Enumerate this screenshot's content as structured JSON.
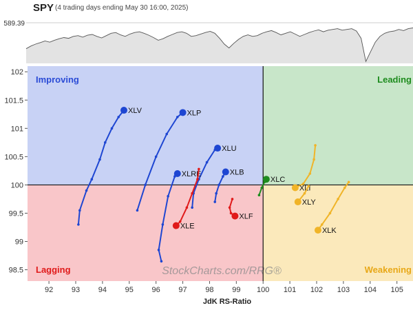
{
  "header": {
    "symbol": "SPY",
    "subtitle": "(4 trading days ending May 30 16:00, 2025)",
    "last_price": "589.39"
  },
  "spy_sparkline": [
    0.62,
    0.55,
    0.5,
    0.46,
    0.42,
    0.45,
    0.4,
    0.36,
    0.33,
    0.35,
    0.3,
    0.28,
    0.32,
    0.27,
    0.25,
    0.3,
    0.34,
    0.28,
    0.22,
    0.2,
    0.26,
    0.3,
    0.24,
    0.2,
    0.18,
    0.22,
    0.27,
    0.33,
    0.4,
    0.36,
    0.3,
    0.25,
    0.2,
    0.18,
    0.22,
    0.3,
    0.28,
    0.24,
    0.2,
    0.17,
    0.22,
    0.35,
    0.5,
    0.6,
    0.48,
    0.38,
    0.3,
    0.26,
    0.3,
    0.28,
    0.22,
    0.18,
    0.15,
    0.2,
    0.26,
    0.22,
    0.18,
    0.24,
    0.3,
    0.25,
    0.2,
    0.16,
    0.13,
    0.18,
    0.14,
    0.12,
    0.1,
    0.14,
    0.12,
    0.1,
    0.16,
    0.35,
    0.95,
    0.7,
    0.45,
    0.3,
    0.22,
    0.18,
    0.16,
    0.12,
    0.15,
    0.1,
    0.08
  ],
  "chart_data": {
    "type": "scatter",
    "title": "",
    "xlabel": "JdK RS-Ratio",
    "ylabel": "",
    "xlim": [
      91.2,
      105.6
    ],
    "ylim": [
      98.3,
      102.1
    ],
    "x_ticks": [
      "92",
      "93",
      "94",
      "95",
      "96",
      "97",
      "98",
      "99",
      "100",
      "101",
      "102",
      "103",
      "104",
      "105"
    ],
    "y_ticks": [
      "98.5",
      "99",
      "99.5",
      "100",
      "100.5",
      "101",
      "101.5",
      "102"
    ],
    "quadrants": [
      "Improving",
      "Leading",
      "Lagging",
      "Weakening"
    ],
    "watermark": "StockCharts.com/RRG®",
    "center": [
      100,
      100
    ],
    "grid": false,
    "series": [
      {
        "name": "XLV",
        "color": "#1e46d2",
        "points": [
          [
            93.1,
            99.3
          ],
          [
            93.15,
            99.55
          ],
          [
            93.4,
            99.9
          ],
          [
            93.6,
            100.1
          ],
          [
            93.9,
            100.45
          ],
          [
            94.1,
            100.75
          ],
          [
            94.35,
            101.0
          ],
          [
            94.6,
            101.2
          ],
          [
            94.8,
            101.32
          ]
        ]
      },
      {
        "name": "XLP",
        "color": "#1e46d2",
        "points": [
          [
            95.3,
            99.55
          ],
          [
            95.6,
            100.0
          ],
          [
            96.0,
            100.5
          ],
          [
            96.4,
            100.9
          ],
          [
            96.8,
            101.2
          ],
          [
            97.0,
            101.28
          ]
        ]
      },
      {
        "name": "XLU",
        "color": "#1e46d2",
        "points": [
          [
            97.35,
            99.6
          ],
          [
            97.4,
            99.85
          ],
          [
            97.6,
            100.1
          ],
          [
            97.9,
            100.4
          ],
          [
            98.2,
            100.62
          ],
          [
            98.3,
            100.65
          ]
        ]
      },
      {
        "name": "XLRE",
        "color": "#1e46d2",
        "points": [
          [
            96.2,
            98.65
          ],
          [
            96.1,
            98.85
          ],
          [
            96.25,
            99.3
          ],
          [
            96.45,
            99.8
          ],
          [
            96.7,
            100.15
          ],
          [
            96.8,
            100.2
          ]
        ]
      },
      {
        "name": "XLB",
        "color": "#1e46d2",
        "points": [
          [
            98.2,
            99.7
          ],
          [
            98.25,
            99.85
          ],
          [
            98.35,
            100.0
          ],
          [
            98.5,
            100.15
          ],
          [
            98.6,
            100.23
          ]
        ]
      },
      {
        "name": "XLE",
        "color": "#e01a1a",
        "points": [
          [
            97.6,
            100.28
          ],
          [
            97.55,
            100.1
          ],
          [
            97.35,
            99.85
          ],
          [
            97.15,
            99.6
          ],
          [
            96.9,
            99.35
          ],
          [
            96.75,
            99.28
          ]
        ]
      },
      {
        "name": "XLF",
        "color": "#e01a1a",
        "points": [
          [
            98.85,
            99.75
          ],
          [
            98.75,
            99.6
          ],
          [
            98.8,
            99.5
          ],
          [
            98.95,
            99.45
          ]
        ]
      },
      {
        "name": "XLC",
        "color": "#1e8c1e",
        "points": [
          [
            99.85,
            99.82
          ],
          [
            99.95,
            99.95
          ],
          [
            100.05,
            100.05
          ],
          [
            100.12,
            100.1
          ]
        ]
      },
      {
        "name": "XLI",
        "color": "#f0b428",
        "points": [
          [
            101.95,
            100.7
          ],
          [
            101.9,
            100.45
          ],
          [
            101.75,
            100.2
          ],
          [
            101.5,
            100.02
          ],
          [
            101.2,
            99.95
          ]
        ]
      },
      {
        "name": "XLY",
        "color": "#f0b428",
        "points": [
          [
            101.7,
            99.98
          ],
          [
            101.55,
            99.85
          ],
          [
            101.3,
            99.7
          ]
        ]
      },
      {
        "name": "XLK",
        "color": "#f0b428",
        "points": [
          [
            103.2,
            100.05
          ],
          [
            103.05,
            99.95
          ],
          [
            102.8,
            99.75
          ],
          [
            102.5,
            99.5
          ],
          [
            102.2,
            99.3
          ],
          [
            102.05,
            99.2
          ]
        ]
      }
    ]
  }
}
